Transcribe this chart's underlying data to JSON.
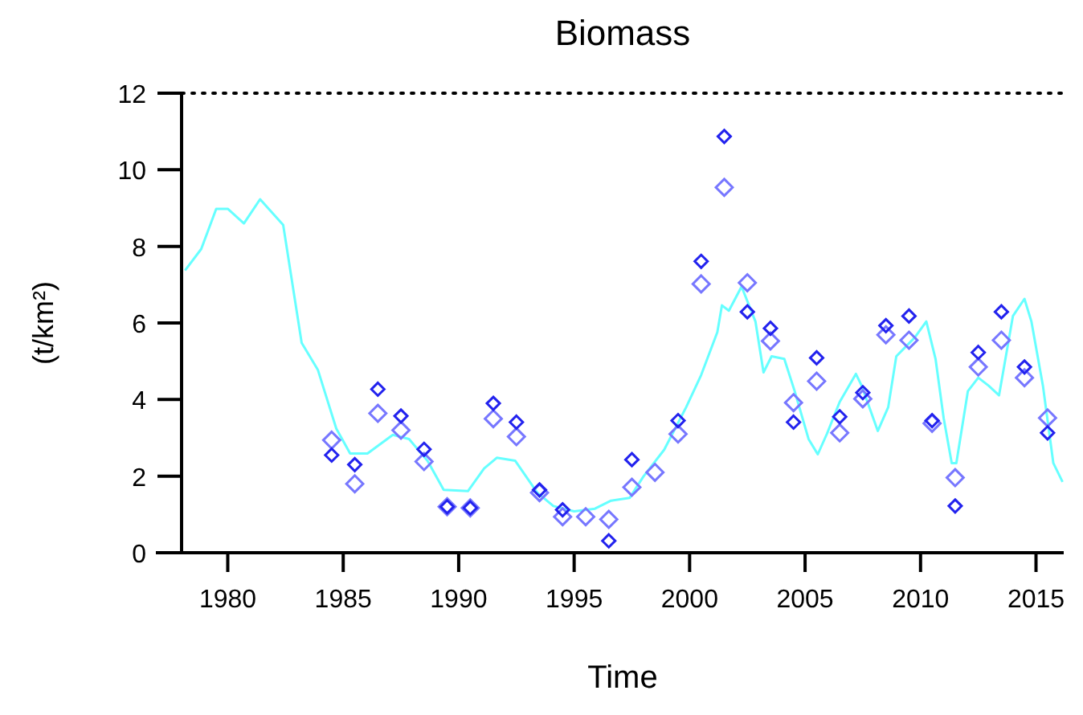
{
  "chart_data": {
    "type": "scatter",
    "title": "Biomass",
    "xlabel": "Time",
    "ylabel": "(t/km²)",
    "xlim": [
      1978,
      2016.2
    ],
    "xticks": [
      1980,
      1985,
      1990,
      1995,
      2000,
      2005,
      2010,
      2015
    ],
    "ylim": [
      0,
      12
    ],
    "yticks": [
      0,
      2,
      4,
      6,
      8,
      10,
      12
    ],
    "grid": false,
    "marker": "diamond",
    "ref_lines": [
      {
        "axis": "y",
        "value": 12,
        "color": "#000000",
        "line_style": "dotted"
      }
    ],
    "series": [
      {
        "type": "line",
        "color": "#66ffff",
        "marker": "none",
        "line_style": "solid",
        "x": [
          1978.15,
          1978.85,
          1979.5,
          1980,
          1980.7,
          1981.4,
          1982.4,
          1983.2,
          1983.9,
          1984.7,
          1985.3,
          1986.05,
          1987.15,
          1987.85,
          1988.65,
          1989.35,
          1990.4,
          1991.1,
          1991.65,
          1992.45,
          1993.4,
          1994.1,
          1995.0,
          1995.9,
          1996.6,
          1997.4,
          1998.0,
          1998.9,
          1999.85,
          2000.5,
          2001.2,
          2001.4,
          2001.7,
          2002.25,
          2002.85,
          2003.2,
          2003.55,
          2004.1,
          2004.55,
          2005.15,
          2005.55,
          2005.95,
          2006.5,
          2007.2,
          2007.45,
          2008.15,
          2008.6,
          2008.95,
          2009.75,
          2010.25,
          2010.65,
          2011.0,
          2011.35,
          2011.55,
          2012.05,
          2012.5,
          2012.95,
          2013.4,
          2014.0,
          2014.5,
          2014.8,
          2015.3,
          2015.75,
          2016.15
        ],
        "values": [
          7.37,
          7.93,
          8.98,
          8.98,
          8.6,
          9.23,
          8.56,
          5.48,
          4.78,
          3.24,
          2.59,
          2.59,
          3.08,
          2.97,
          2.4,
          1.64,
          1.61,
          2.2,
          2.48,
          2.4,
          1.57,
          1.22,
          1.08,
          1.15,
          1.36,
          1.43,
          1.99,
          2.69,
          3.8,
          4.64,
          5.76,
          6.46,
          6.32,
          6.95,
          6.04,
          4.71,
          5.13,
          5.06,
          4.22,
          2.97,
          2.57,
          3.11,
          3.94,
          4.67,
          4.36,
          3.18,
          3.8,
          5.13,
          5.62,
          6.04,
          5.06,
          3.52,
          2.34,
          2.34,
          4.22,
          4.57,
          4.36,
          4.11,
          6.18,
          6.63,
          6.04,
          4.36,
          2.34,
          1.85
        ]
      },
      {
        "color": "#7777ff",
        "x": [
          1984.5,
          1985.5,
          1986.5,
          1987.5,
          1988.5,
          1989.5,
          1990.5,
          1991.5,
          1992.5,
          1993.5,
          1994.5,
          1995.5,
          1996.5,
          1997.5,
          1998.5,
          1999.5,
          2000.5,
          2001.5,
          2002.5,
          2003.5,
          2004.5,
          2005.5,
          2006.5,
          2007.5,
          2008.5,
          2009.5,
          2010.5,
          2011.5,
          2012.5,
          2013.5,
          2014.5,
          2015.5
        ],
        "values": [
          2.94,
          1.8,
          3.64,
          3.2,
          2.38,
          1.2,
          1.17,
          3.5,
          3.03,
          1.57,
          0.94,
          0.94,
          0.87,
          1.71,
          2.1,
          3.1,
          7.02,
          9.54,
          7.05,
          5.53,
          3.92,
          4.48,
          3.13,
          4.02,
          5.69,
          5.55,
          3.38,
          1.96,
          4.85,
          5.55,
          4.57,
          3.52
        ]
      },
      {
        "color": "#2222ee",
        "x": [
          1984.5,
          1985.5,
          1986.5,
          1987.5,
          1988.5,
          1989.5,
          1990.5,
          1991.5,
          1992.5,
          1993.5,
          1994.5,
          1996.5,
          1997.5,
          1999.5,
          2000.5,
          2001.5,
          2002.5,
          2003.5,
          2004.5,
          2005.5,
          2006.5,
          2007.5,
          2008.5,
          2009.5,
          2010.5,
          2011.5,
          2012.5,
          2013.5,
          2014.5,
          2015.5
        ],
        "values": [
          2.55,
          2.3,
          4.27,
          3.57,
          2.7,
          1.2,
          1.17,
          3.9,
          3.41,
          1.64,
          1.12,
          0.31,
          2.43,
          3.45,
          7.61,
          10.87,
          6.29,
          5.86,
          3.41,
          5.09,
          3.55,
          4.18,
          5.93,
          6.18,
          3.45,
          1.22,
          5.23,
          6.29,
          4.85,
          3.13
        ]
      }
    ]
  }
}
